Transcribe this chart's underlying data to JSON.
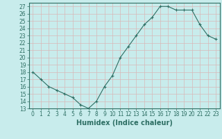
{
  "x": [
    0,
    1,
    2,
    3,
    4,
    5,
    6,
    7,
    8,
    9,
    10,
    11,
    12,
    13,
    14,
    15,
    16,
    17,
    18,
    19,
    20,
    21,
    22,
    23
  ],
  "y": [
    18,
    17,
    16,
    15.5,
    15,
    14.5,
    13.5,
    13,
    14,
    16,
    17.5,
    20,
    21.5,
    23,
    24.5,
    25.5,
    27,
    27,
    26.5,
    26.5,
    26.5,
    24.5,
    23,
    22.5
  ],
  "line_color": "#2d6e63",
  "marker": "+",
  "bg_color": "#c8ecec",
  "grid_color": "#b0d8d8",
  "xlabel": "Humidex (Indice chaleur)",
  "ylim": [
    13,
    27.5
  ],
  "xlim": [
    -0.5,
    23.5
  ],
  "yticks": [
    13,
    14,
    15,
    16,
    17,
    18,
    19,
    20,
    21,
    22,
    23,
    24,
    25,
    26,
    27
  ],
  "xticks": [
    0,
    1,
    2,
    3,
    4,
    5,
    6,
    7,
    8,
    9,
    10,
    11,
    12,
    13,
    14,
    15,
    16,
    17,
    18,
    19,
    20,
    21,
    22,
    23
  ],
  "axis_color": "#2d6e63",
  "label_fontsize": 7,
  "tick_fontsize": 5.5
}
